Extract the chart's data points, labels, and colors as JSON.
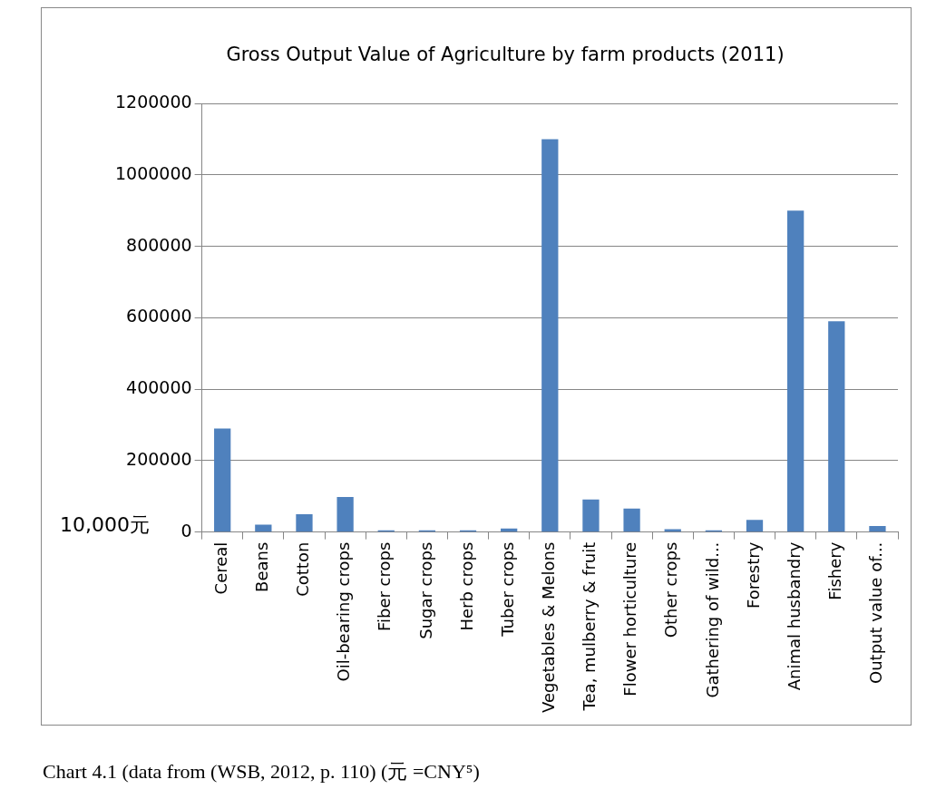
{
  "chart_data": {
    "type": "bar",
    "title": "Gross Output Value of Agriculture by farm products (2011)",
    "ylabel": "10,000元",
    "categories": [
      "Cereal",
      "Beans",
      "Cotton",
      "Oil-bearing crops",
      "Fiber crops",
      "Sugar crops",
      "Herb crops",
      "Tuber crops",
      "Vegetables & Melons",
      "Tea, mulberry & fruit",
      "Flower horticulture",
      "Other crops",
      "Gathering of wild...",
      "Forestry",
      "Animal husbandry",
      "Fishery",
      "Output value of..."
    ],
    "values": [
      290000,
      21000,
      50000,
      98000,
      5000,
      5000,
      5000,
      10000,
      1100000,
      91000,
      66000,
      8000,
      5000,
      34000,
      900000,
      590000,
      17000
    ],
    "color": "#4f81bd",
    "ylim": [
      0,
      1200000
    ],
    "yticks": [
      0,
      200000,
      400000,
      600000,
      800000,
      1000000,
      1200000
    ],
    "grid": "y",
    "annotations": [
      "Chart 4.1 (data from (WSB, 2012, p. 110) (元  =CNY⁵)"
    ]
  }
}
